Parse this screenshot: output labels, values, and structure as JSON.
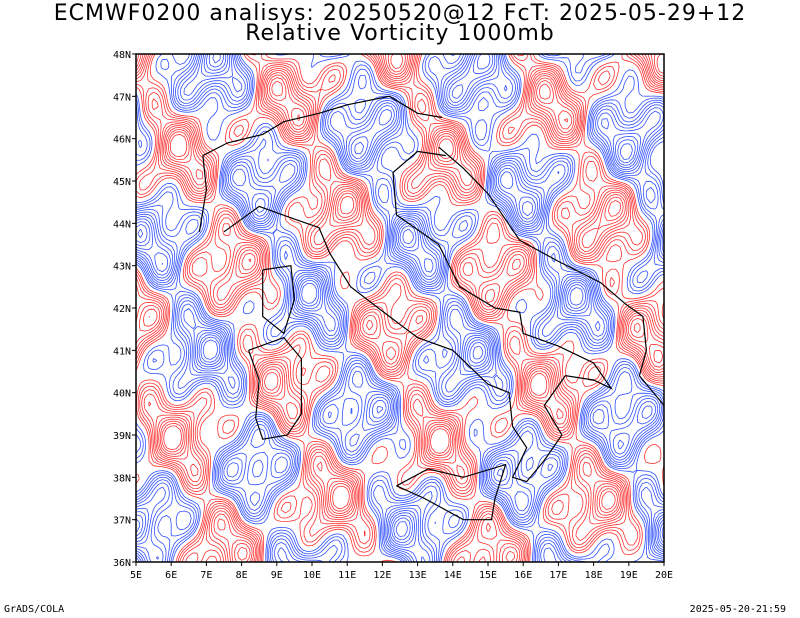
{
  "header": {
    "title_line1": "ECMWF0200 analisys: 20250520@12 FcT: 2025-05-29+12",
    "title_line2": "Relative Vorticity 1000mb"
  },
  "map": {
    "lon_range": [
      5,
      20
    ],
    "lat_range": [
      36,
      48
    ],
    "x_ticks": [
      "5E",
      "6E",
      "7E",
      "8E",
      "9E",
      "10E",
      "11E",
      "12E",
      "13E",
      "14E",
      "15E",
      "16E",
      "17E",
      "18E",
      "19E",
      "20E"
    ],
    "y_ticks": [
      "36N",
      "37N",
      "38N",
      "39N",
      "40N",
      "41N",
      "42N",
      "43N",
      "44N",
      "45N",
      "46N",
      "47N",
      "48N"
    ],
    "colors": {
      "positive_vorticity": "#ff3030",
      "negative_vorticity": "#3050ff",
      "coastline": "#000000",
      "frame": "#000000"
    }
  },
  "footer": {
    "left": "GrADS/COLA",
    "right": "2025-05-20-21:59"
  }
}
